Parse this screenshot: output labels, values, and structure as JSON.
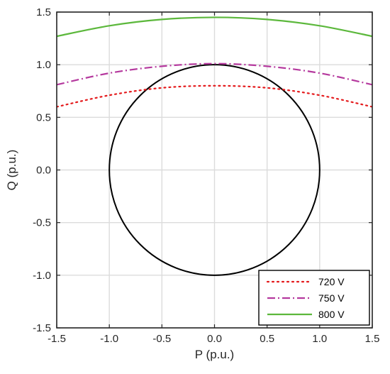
{
  "chart_data": {
    "type": "line",
    "title": "",
    "xlabel": "P (p.u.)",
    "ylabel": "Q (p.u.)",
    "xlim": [
      -1.5,
      1.5
    ],
    "ylim": [
      -1.5,
      1.5
    ],
    "x_ticks": [
      "-1.5",
      "-1.0",
      "-0.5",
      "0.0",
      "0.5",
      "1.0",
      "1.5"
    ],
    "y_ticks": [
      "-1.5",
      "-1.0",
      "-0.5",
      "0.0",
      "0.5",
      "1.0",
      "1.5"
    ],
    "grid": true,
    "legend_position": "bottom-right",
    "series": [
      {
        "name": "720 V",
        "color": "#e41a1c",
        "style": "dotted",
        "x": [
          -1.5,
          -1.0,
          -0.5,
          0.0,
          0.5,
          1.0,
          1.5
        ],
        "y": [
          0.6,
          0.71,
          0.78,
          0.8,
          0.78,
          0.71,
          0.6
        ]
      },
      {
        "name": "750 V",
        "color": "#b5399e",
        "style": "dashdot",
        "x": [
          -1.5,
          -1.0,
          -0.5,
          0.0,
          0.5,
          1.0,
          1.5
        ],
        "y": [
          0.81,
          0.92,
          0.985,
          1.01,
          0.985,
          0.92,
          0.81
        ]
      },
      {
        "name": "800 V",
        "color": "#5cb83c",
        "style": "solid",
        "x": [
          -1.5,
          -1.0,
          -0.5,
          0.0,
          0.5,
          1.0,
          1.5
        ],
        "y": [
          1.27,
          1.37,
          1.43,
          1.45,
          1.43,
          1.37,
          1.27
        ]
      }
    ],
    "circle": {
      "center": [
        0,
        0
      ],
      "radius": 1.0,
      "color": "#000000"
    }
  }
}
